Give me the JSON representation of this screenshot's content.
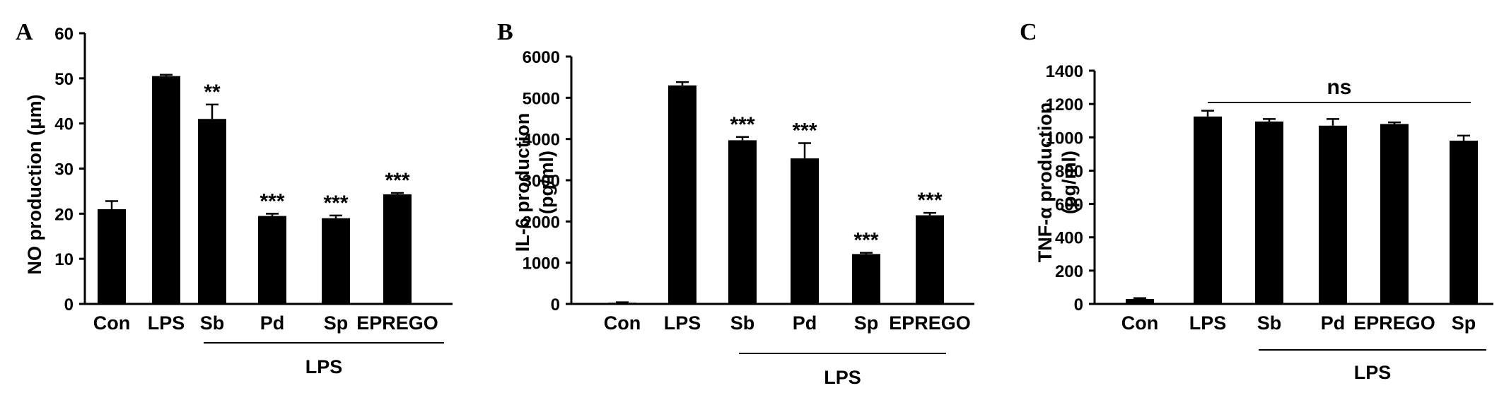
{
  "colors": {
    "bar": "#000000",
    "axis": "#000000",
    "background": "#ffffff"
  },
  "chart_data": [
    {
      "type": "bar",
      "panel": "A",
      "ylabel": "NO production (μm)",
      "ylim": [
        0,
        60
      ],
      "yticks": [
        "0",
        "10",
        "20",
        "30",
        "40",
        "50",
        "60"
      ],
      "categories": [
        "Con",
        "LPS",
        "Sb",
        "Pd",
        "Sp",
        "EPREGO"
      ],
      "values": [
        21,
        50.5,
        41,
        19.5,
        19,
        24.3
      ],
      "errors": [
        1.8,
        0.3,
        3.2,
        0.5,
        0.6,
        0.3
      ],
      "significance": [
        "",
        "",
        "**",
        "***",
        "***",
        "***"
      ],
      "group_label": "LPS",
      "group_range": [
        2,
        5
      ]
    },
    {
      "type": "bar",
      "panel": "B",
      "ylabel_line1": "IL-6 production",
      "ylabel_line2": "(pg/ml)",
      "ylim": [
        0,
        6000
      ],
      "yticks": [
        "0",
        "1000",
        "2000",
        "3000",
        "4000",
        "5000",
        "6000"
      ],
      "categories": [
        "Con",
        "LPS",
        "Sb",
        "Pd",
        "Sp",
        "EPREGO"
      ],
      "values": [
        30,
        5300,
        3970,
        3530,
        1210,
        2150
      ],
      "errors": [
        10,
        80,
        80,
        370,
        30,
        60
      ],
      "significance": [
        "",
        "",
        "***",
        "***",
        "***",
        "***"
      ],
      "group_label": "LPS",
      "group_range": [
        2,
        5
      ]
    },
    {
      "type": "bar",
      "panel": "C",
      "ylabel_line1": "TNF-α production",
      "ylabel_line2": "(pg/ml)",
      "ylim": [
        0,
        1400
      ],
      "yticks": [
        "0",
        "200",
        "400",
        "600",
        "800",
        "1000",
        "1200",
        "1400"
      ],
      "categories": [
        "Con",
        "LPS",
        "Sb",
        "Pd",
        "EPREGO",
        "Sp"
      ],
      "values": [
        30,
        1125,
        1095,
        1070,
        1080,
        980
      ],
      "errors": [
        5,
        35,
        15,
        40,
        10,
        30
      ],
      "significance": [
        "",
        "",
        "",
        "",
        "",
        ""
      ],
      "ns_label": "ns",
      "ns_range": [
        1,
        5
      ],
      "group_label": "LPS",
      "group_range": [
        2,
        5
      ]
    }
  ]
}
